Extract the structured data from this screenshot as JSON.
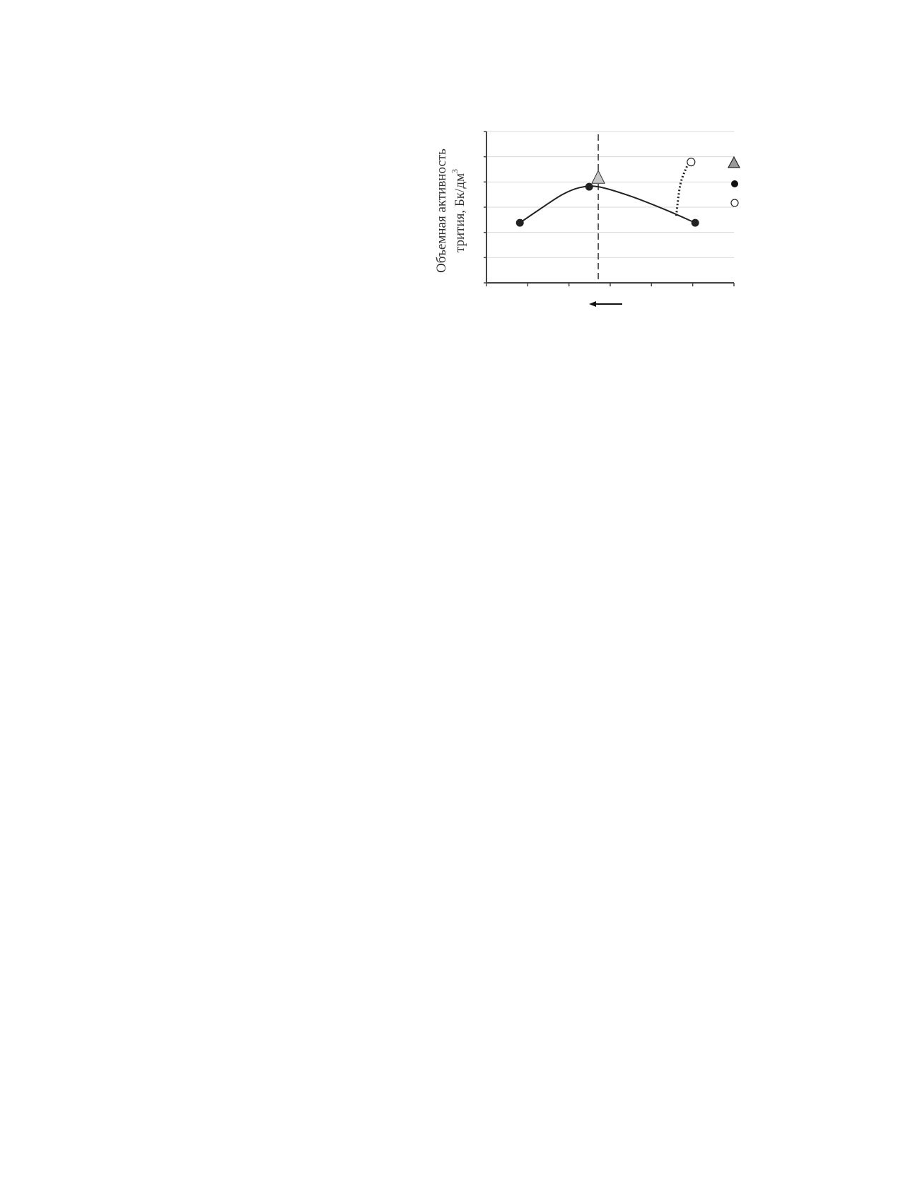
{
  "chart_data": {
    "type": "line",
    "title": "",
    "xlabel": "",
    "ylabel_line1": "Объемная активность",
    "ylabel_line2": "трития, Бк/дм",
    "ylabel_sup": "3",
    "xlim": [
      0,
      6
    ],
    "ylim": [
      0,
      6
    ],
    "x_ticks": [
      0,
      1,
      2,
      3,
      4,
      5,
      6
    ],
    "y_ticks": [
      0,
      1,
      2,
      3,
      4,
      5,
      6
    ],
    "grid": "horizontal",
    "legend_placement": "right",
    "series": [
      {
        "marker": "filled-circle",
        "color": "#222222",
        "points": [
          [
            0.81,
            2.38
          ],
          [
            2.49,
            3.81
          ],
          [
            5.06,
            2.38
          ]
        ],
        "curve": [
          [
            0.81,
            2.38
          ],
          [
            1.24,
            2.86
          ],
          [
            1.84,
            3.5
          ],
          [
            2.27,
            3.78
          ],
          [
            2.71,
            3.81
          ],
          [
            3.47,
            3.45
          ],
          [
            4.32,
            2.91
          ],
          [
            5.06,
            2.38
          ]
        ]
      },
      {
        "marker": "triangle",
        "color": "#c8c8c8",
        "points": [
          [
            2.71,
            4.17
          ]
        ]
      },
      {
        "marker": "open-circle",
        "color": "#ffffff",
        "points": [
          [
            4.96,
            4.79
          ]
        ]
      }
    ],
    "dotted_segment": [
      [
        4.6,
        2.66
      ],
      [
        4.7,
        3.9
      ],
      [
        4.86,
        4.62
      ]
    ],
    "vertical_dashed_line_x": 2.71,
    "arrow_direction": "left",
    "legend_markers": [
      "triangle",
      "filled-circle",
      "open-circle"
    ],
    "legend_triangle_color": "#999999"
  }
}
